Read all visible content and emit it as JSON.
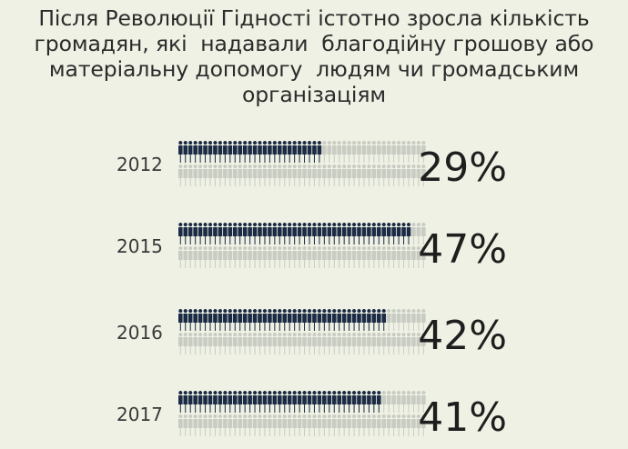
{
  "title_lines": [
    "Після Революції Гідності істотно зросла кількість",
    "громадян, які  надавали  благодійну грошову або",
    "матеріальну допомогу  людям чи громадським",
    "організаціям"
  ],
  "colors": {
    "background": "#eef1e3",
    "filled_person": "#1c2b45",
    "empty_person": "#c9ccc3",
    "text": "#2b2b2b"
  },
  "icon": "person-icon",
  "chart_data": {
    "type": "bar",
    "title": "Після Революції Гідності істотно зросла кількість громадян, які  надавали  благодійну грошову або матеріальну допомогу  людям чи громадським організаціям",
    "categories": [
      "2012",
      "2015",
      "2016",
      "2017"
    ],
    "values": [
      29,
      47,
      42,
      41
    ],
    "value_labels": [
      "29%",
      "47%",
      "42%",
      "41%"
    ],
    "unit": "%",
    "ylim": [
      0,
      100
    ],
    "xlabel": "",
    "ylabel": "",
    "grid": false,
    "legend": "none"
  }
}
